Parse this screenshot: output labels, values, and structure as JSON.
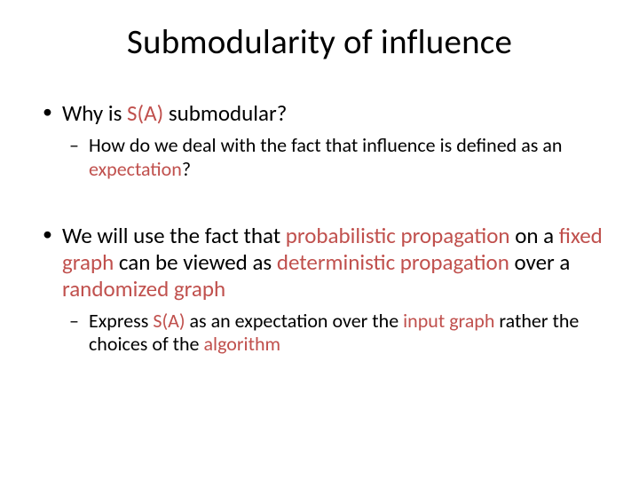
{
  "colors": {
    "background": "#ffffff",
    "text": "#000000",
    "highlight": "#c0504d"
  },
  "typography": {
    "title_fontsize": 39,
    "l1_fontsize": 25,
    "l2_fontsize": 22,
    "font_family": "Calibri"
  },
  "title": "Submodularity of influence",
  "b1": {
    "pre": "Why is ",
    "hl": "S(A)",
    "post": " submodular?"
  },
  "b1a": {
    "pre": "How do we deal with the fact that influence is defined as an ",
    "hl": "expectation",
    "post": "?"
  },
  "b2": {
    "t1": "We will use the fact that ",
    "h1": "probabilistic propagation ",
    "t2": "on a ",
    "h2": "fixed graph ",
    "t3": "can be viewed as ",
    "h3": "deterministic propagation ",
    "t4": "over a ",
    "h4": "randomized graph"
  },
  "b2a": {
    "t1": "Express ",
    "h1": "S(A) ",
    "t2": "as an expectation over the ",
    "h2": "input graph ",
    "t3": "rather the choices of the ",
    "h3": "algorithm"
  }
}
